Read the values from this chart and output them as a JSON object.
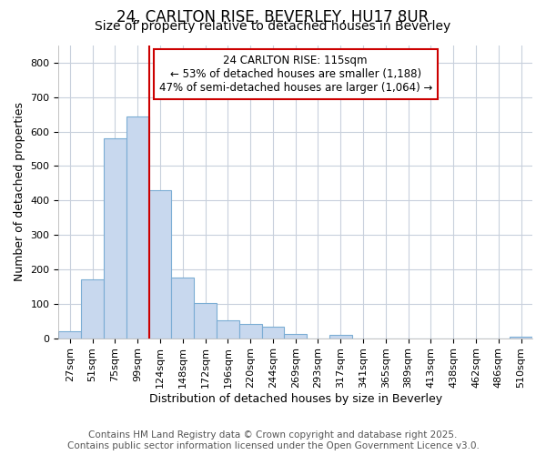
{
  "title": "24, CARLTON RISE, BEVERLEY, HU17 8UR",
  "subtitle": "Size of property relative to detached houses in Beverley",
  "xlabel": "Distribution of detached houses by size in Beverley",
  "ylabel": "Number of detached properties",
  "bar_labels": [
    "27sqm",
    "51sqm",
    "75sqm",
    "99sqm",
    "124sqm",
    "148sqm",
    "172sqm",
    "196sqm",
    "220sqm",
    "244sqm",
    "269sqm",
    "293sqm",
    "317sqm",
    "341sqm",
    "365sqm",
    "389sqm",
    "413sqm",
    "438sqm",
    "462sqm",
    "486sqm",
    "510sqm"
  ],
  "bar_values": [
    20,
    170,
    580,
    645,
    430,
    175,
    103,
    52,
    40,
    33,
    13,
    0,
    10,
    0,
    0,
    0,
    0,
    0,
    0,
    0,
    5
  ],
  "bar_color": "#c8d8ee",
  "bar_edge_color": "#7badd4",
  "vline_color": "#cc0000",
  "annotation_text": "24 CARLTON RISE: 115sqm\n← 53% of detached houses are smaller (1,188)\n47% of semi-detached houses are larger (1,064) →",
  "annotation_box_color": "#ffffff",
  "annotation_box_edge": "#cc0000",
  "ylim": [
    0,
    850
  ],
  "yticks": [
    0,
    100,
    200,
    300,
    400,
    500,
    600,
    700,
    800
  ],
  "grid_color": "#c8d0dc",
  "bg_color": "#ffffff",
  "plot_bg_color": "#ffffff",
  "footer_line1": "Contains HM Land Registry data © Crown copyright and database right 2025.",
  "footer_line2": "Contains public sector information licensed under the Open Government Licence v3.0.",
  "title_fontsize": 12,
  "subtitle_fontsize": 10,
  "tick_fontsize": 8,
  "label_fontsize": 9,
  "footer_fontsize": 7.5
}
